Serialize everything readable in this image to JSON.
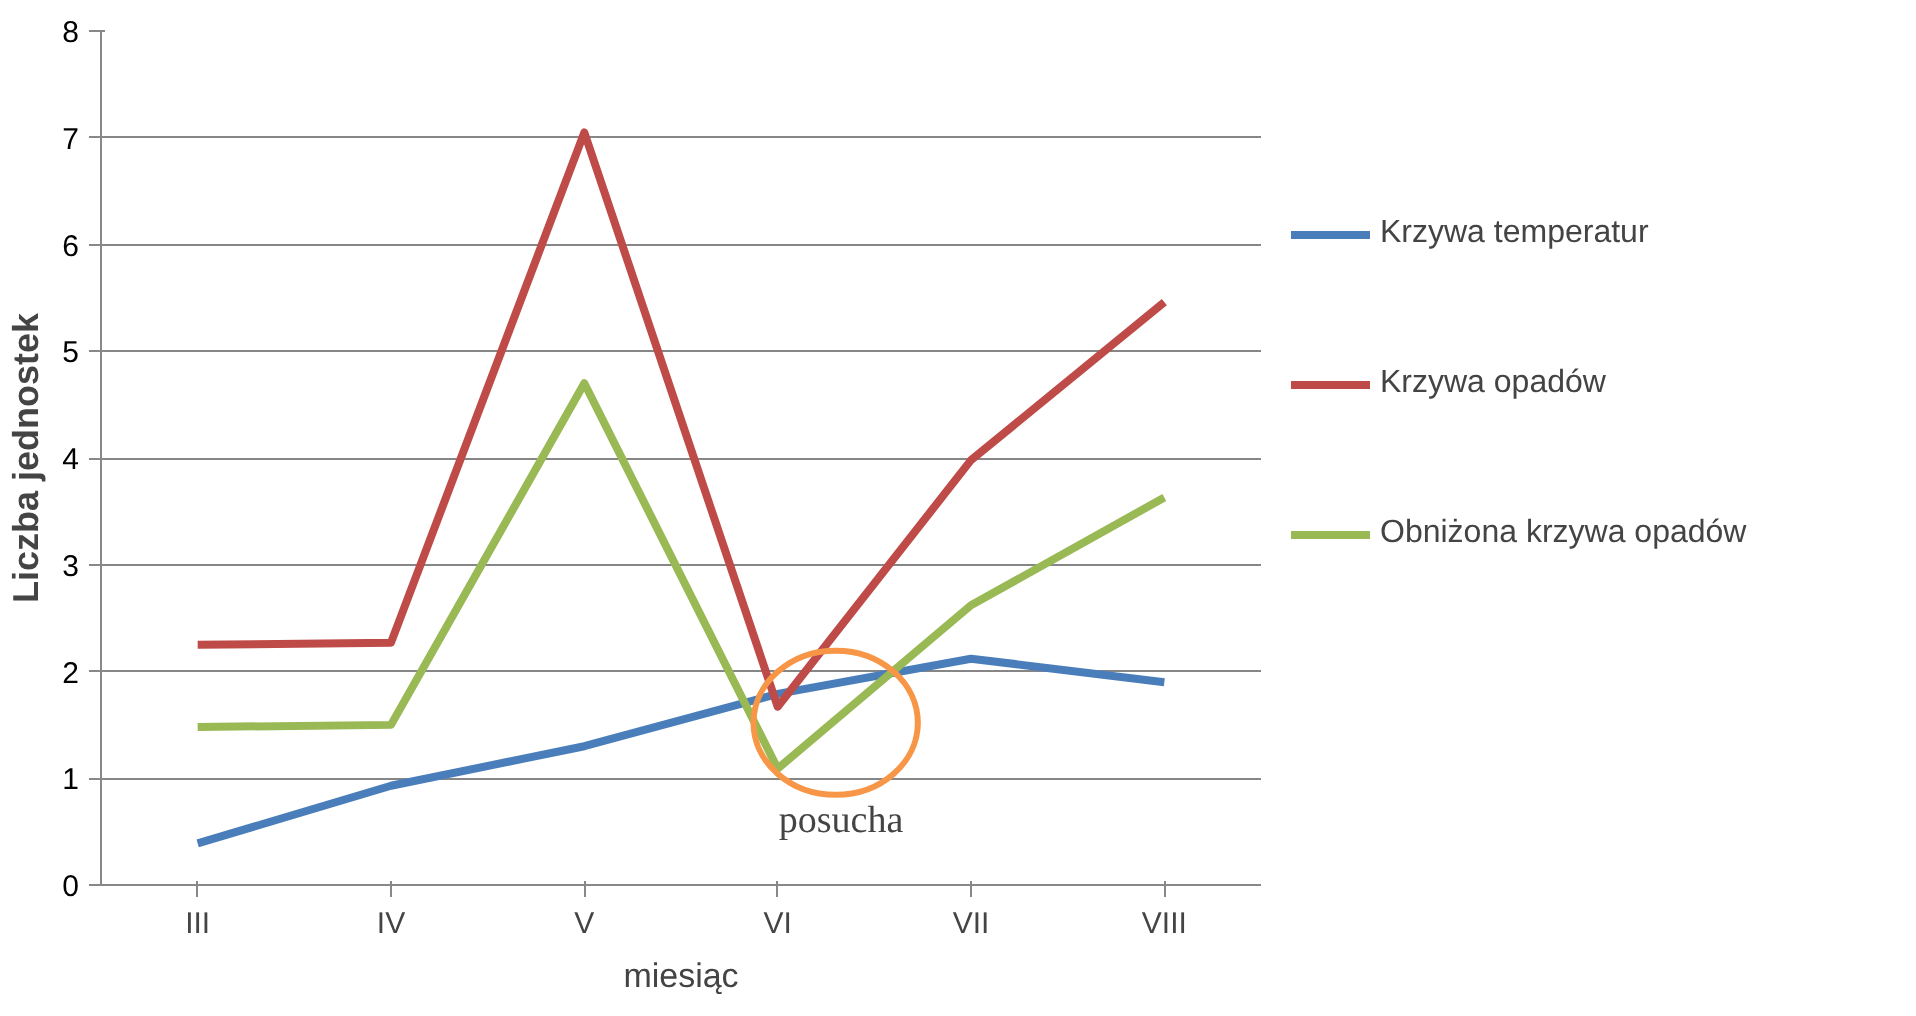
{
  "chart_data": {
    "type": "line",
    "xlabel": "miesiąc",
    "ylabel": "Liczba jednostek",
    "categories": [
      "III",
      "IV",
      "V",
      "VI",
      "VII",
      "VIII"
    ],
    "series": [
      {
        "name": "Krzywa temperatur",
        "color": "#4a7ebb",
        "values": [
          0.39,
          0.93,
          1.3,
          1.79,
          2.12,
          1.9
        ]
      },
      {
        "name": "Krzywa opadów",
        "color": "#be4b48",
        "values": [
          2.25,
          2.27,
          7.05,
          1.67,
          3.98,
          5.46
        ]
      },
      {
        "name": "Obniżona krzywa opadów",
        "color": "#98b954",
        "values": [
          1.48,
          1.5,
          4.7,
          1.09,
          2.62,
          3.63
        ]
      }
    ],
    "ylim": [
      0,
      8
    ],
    "yticks": [
      0,
      1,
      2,
      3,
      4,
      5,
      6,
      7,
      8
    ],
    "grid": "y",
    "legend": "right",
    "marker": "none",
    "line_style": "solid",
    "annotations": [
      "posucha"
    ]
  }
}
